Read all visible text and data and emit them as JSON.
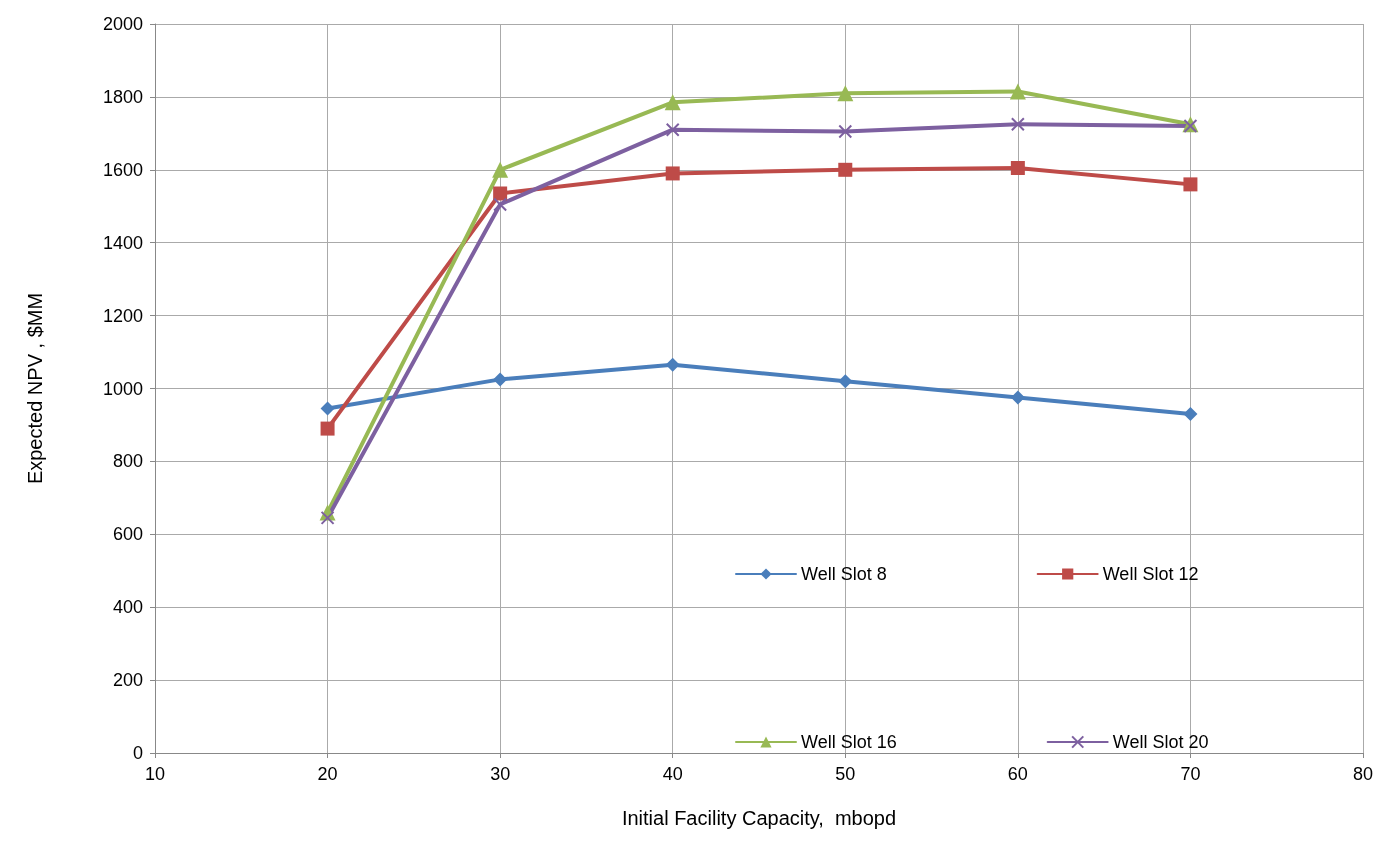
{
  "chart_data": {
    "type": "line",
    "xlabel": "Initial Facility Capacity,  mbopd",
    "ylabel": "Expected NPV , $MM",
    "x": [
      20,
      30,
      40,
      50,
      60,
      70
    ],
    "series": [
      {
        "name": "Well Slot 8",
        "color": "#4a7ebb",
        "marker": "diamond",
        "values": [
          945,
          1025,
          1065,
          1020,
          975,
          930
        ]
      },
      {
        "name": "Well Slot 12",
        "color": "#be4b48",
        "marker": "square",
        "values": [
          890,
          1535,
          1590,
          1600,
          1605,
          1560
        ]
      },
      {
        "name": "Well Slot 16",
        "color": "#98b954",
        "marker": "triangle",
        "values": [
          660,
          1600,
          1785,
          1810,
          1815,
          1725
        ]
      },
      {
        "name": "Well Slot 20",
        "color": "#7d60a0",
        "marker": "cross",
        "values": [
          645,
          1505,
          1710,
          1705,
          1725,
          1720
        ]
      }
    ],
    "xlim": [
      10,
      80
    ],
    "xticks": [
      10,
      20,
      30,
      40,
      50,
      60,
      70,
      80
    ],
    "ylim": [
      0,
      2000
    ],
    "yticks": [
      0,
      200,
      400,
      600,
      800,
      1000,
      1200,
      1400,
      1600,
      1800,
      2000
    ],
    "grid": true,
    "legend": "bottom right",
    "line_style": "solid"
  }
}
